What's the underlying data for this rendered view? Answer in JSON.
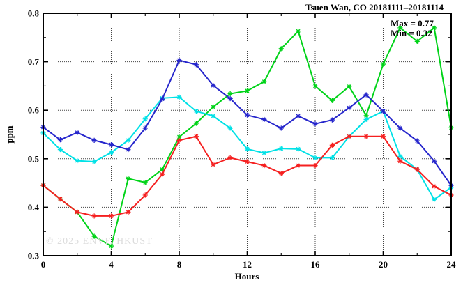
{
  "title": "Tsuen Wan, CO 20181111–20181114",
  "annotations": {
    "max_label": "Max = 0.77",
    "min_label": "Min = 0.32"
  },
  "watermark": "© 2025 ENVF, HKUST",
  "chart_data": {
    "type": "line",
    "title": "Tsuen Wan, CO 20181111–20181114",
    "xlabel": "Hours",
    "ylabel": "ppm",
    "xlim": [
      0,
      24
    ],
    "ylim": [
      0.3,
      0.8
    ],
    "grid": "dotted gridlines at major ticks, mirrored inward ticks on all borders",
    "legend": "none",
    "max_value": 0.77,
    "min_value": 0.32,
    "x_ticks": {
      "values": [
        0,
        4,
        8,
        12,
        16,
        20,
        24
      ],
      "labels": [
        "0",
        "4",
        "8",
        "12",
        "16",
        "20",
        "24"
      ],
      "minor_step": 2
    },
    "y_ticks": {
      "values": [
        0.3,
        0.4,
        0.5,
        0.6,
        0.7,
        0.8
      ],
      "labels": [
        "0.3",
        "0.4",
        "0.5",
        "0.6",
        "0.7",
        "0.8"
      ],
      "minor_step": 0.05
    },
    "x": [
      0,
      1,
      2,
      3,
      4,
      5,
      6,
      7,
      8,
      9,
      10,
      11,
      12,
      13,
      14,
      15,
      16,
      17,
      18,
      19,
      20,
      21,
      22,
      23,
      24
    ],
    "series": [
      {
        "name": "green-series",
        "color": "#00d318",
        "marker": "star",
        "values": [
          0.445,
          0.417,
          0.39,
          0.34,
          0.32,
          0.459,
          0.451,
          0.478,
          0.545,
          0.573,
          0.607,
          0.634,
          0.64,
          0.659,
          0.727,
          0.763,
          0.65,
          0.62,
          0.649,
          0.589,
          0.695,
          0.77,
          0.742,
          0.77,
          0.564
        ]
      },
      {
        "name": "cyan-series",
        "color": "#00e1e6",
        "marker": "star",
        "values": [
          0.553,
          0.519,
          0.496,
          0.494,
          0.513,
          0.538,
          0.582,
          0.625,
          0.627,
          0.598,
          0.588,
          0.563,
          0.52,
          0.512,
          0.521,
          0.52,
          0.502,
          0.502,
          0.546,
          0.581,
          0.598,
          0.505,
          0.478,
          0.416,
          0.441
        ]
      },
      {
        "name": "blue-series",
        "color": "#2626cc",
        "marker": "star",
        "values": [
          0.565,
          0.539,
          0.554,
          0.538,
          0.529,
          0.519,
          0.563,
          0.623,
          0.703,
          0.694,
          0.651,
          0.624,
          0.59,
          0.581,
          0.563,
          0.588,
          0.572,
          0.58,
          0.605,
          0.632,
          0.598,
          0.563,
          0.537,
          0.495,
          0.445
        ]
      },
      {
        "name": "red-series",
        "color": "#f52020",
        "marker": "star",
        "values": [
          0.445,
          0.417,
          0.39,
          0.382,
          0.382,
          0.39,
          0.425,
          0.468,
          0.538,
          0.546,
          0.488,
          0.502,
          0.494,
          0.486,
          0.47,
          0.486,
          0.486,
          0.528,
          0.546,
          0.546,
          0.546,
          0.495,
          0.478,
          0.443,
          0.425
        ]
      }
    ]
  }
}
